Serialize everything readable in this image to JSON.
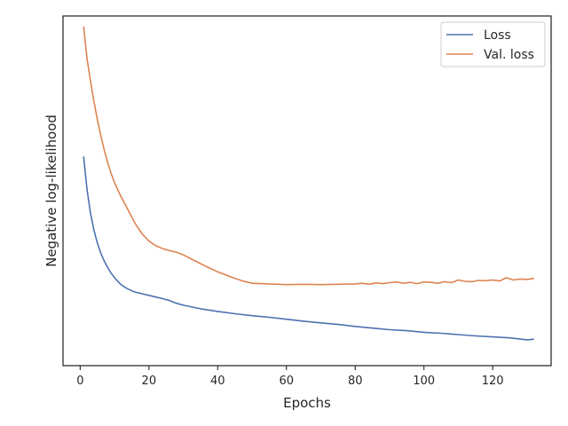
{
  "chart_data": {
    "type": "line",
    "title": "",
    "xlabel": "Epochs",
    "ylabel": "Negative log-likelihood",
    "xlim": [
      -5,
      137
    ],
    "xticks": [
      0,
      20,
      40,
      60,
      80,
      100,
      120
    ],
    "y_tick_labels_shown": false,
    "grid": false,
    "legend": {
      "placement": "top-right"
    },
    "series": [
      {
        "name": "Loss",
        "color": "#4c72b0",
        "x": [
          1,
          2,
          3,
          4,
          5,
          6,
          7,
          8,
          9,
          10,
          11,
          12,
          13,
          14,
          15,
          16,
          18,
          20,
          22,
          24,
          26,
          28,
          30,
          35,
          40,
          45,
          50,
          55,
          60,
          65,
          70,
          75,
          80,
          85,
          90,
          95,
          100,
          105,
          110,
          115,
          120,
          125,
          130,
          132
        ],
        "y": [
          0.73,
          0.628,
          0.556,
          0.504,
          0.465,
          0.434,
          0.41,
          0.39,
          0.373,
          0.359,
          0.347,
          0.337,
          0.33,
          0.324,
          0.319,
          0.315,
          0.31,
          0.305,
          0.3,
          0.295,
          0.289,
          0.281,
          0.275,
          0.264,
          0.256,
          0.249,
          0.243,
          0.238,
          0.232,
          0.226,
          0.221,
          0.216,
          0.21,
          0.205,
          0.2,
          0.197,
          0.192,
          0.189,
          0.185,
          0.181,
          0.178,
          0.175,
          0.169,
          0.171
        ]
      },
      {
        "name": "Val. loss",
        "color": "#dd8452",
        "x": [
          1,
          2,
          3,
          4,
          5,
          6,
          7,
          8,
          9,
          10,
          11,
          12,
          13,
          14,
          15,
          16,
          18,
          20,
          22,
          24,
          26,
          28,
          30,
          33,
          36,
          40,
          44,
          47,
          50,
          55,
          60,
          65,
          70,
          75,
          80,
          82,
          84,
          86,
          88,
          90,
          92,
          94,
          96,
          98,
          100,
          102,
          104,
          106,
          108,
          110,
          112,
          114,
          116,
          118,
          120,
          122,
          124,
          126,
          128,
          130,
          132
        ],
        "y": [
          1.128,
          1.029,
          0.96,
          0.898,
          0.843,
          0.793,
          0.749,
          0.711,
          0.678,
          0.65,
          0.626,
          0.605,
          0.585,
          0.565,
          0.545,
          0.525,
          0.493,
          0.471,
          0.457,
          0.448,
          0.442,
          0.437,
          0.429,
          0.413,
          0.397,
          0.377,
          0.361,
          0.35,
          0.342,
          0.34,
          0.338,
          0.339,
          0.338,
          0.339,
          0.34,
          0.342,
          0.339,
          0.343,
          0.341,
          0.344,
          0.346,
          0.342,
          0.345,
          0.341,
          0.346,
          0.345,
          0.342,
          0.347,
          0.344,
          0.352,
          0.348,
          0.347,
          0.351,
          0.35,
          0.352,
          0.349,
          0.359,
          0.352,
          0.355,
          0.354,
          0.357
        ]
      }
    ]
  }
}
